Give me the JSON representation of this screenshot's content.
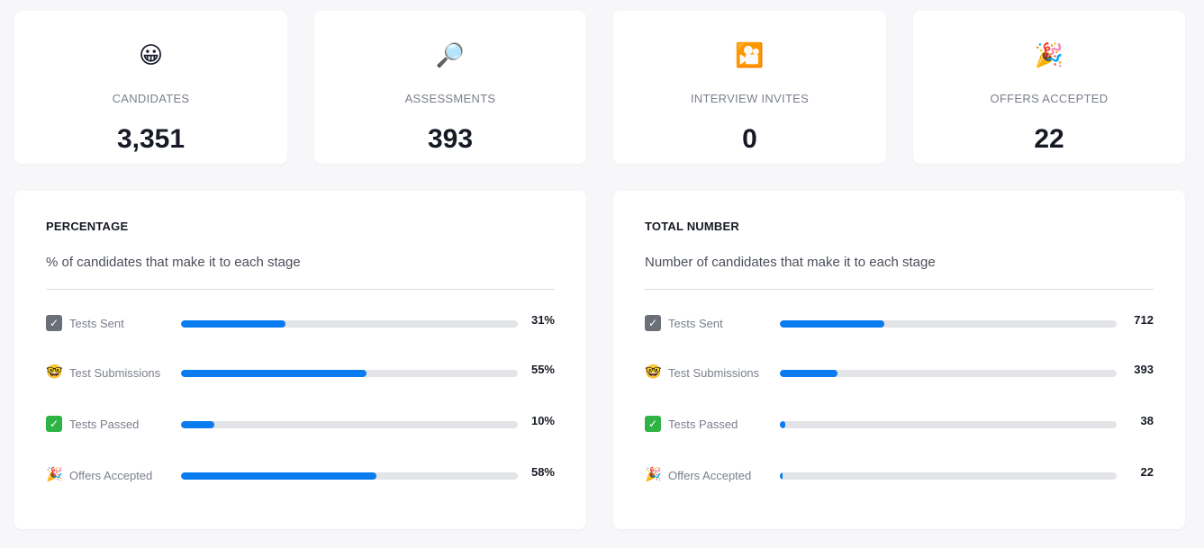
{
  "stats": [
    {
      "icon": "grinning-face-icon",
      "glyph": "😀",
      "label": "CANDIDATES",
      "value": "3,351"
    },
    {
      "icon": "magnifying-glass-icon",
      "glyph": "🔎",
      "label": "ASSESSMENTS",
      "value": "393"
    },
    {
      "icon": "movie-camera-icon",
      "glyph": "🎦",
      "label": "INTERVIEW INVITES",
      "value": "0"
    },
    {
      "icon": "party-popper-icon",
      "glyph": "🎉",
      "label": "OFFERS ACCEPTED",
      "value": "22"
    }
  ],
  "percentage_panel": {
    "title": "PERCENTAGE",
    "subtitle": "% of candidates that make it to each stage",
    "rows": [
      {
        "icon": "check-box-icon",
        "label": "Tests Sent",
        "value": "31%",
        "fraction": 0.31
      },
      {
        "icon": "nerd-face-icon",
        "label": "Test Submissions",
        "value": "55%",
        "fraction": 0.55
      },
      {
        "icon": "check-mark-button-icon",
        "label": "Tests Passed",
        "value": "10%",
        "fraction": 0.1
      },
      {
        "icon": "party-popper-icon",
        "label": "Offers Accepted",
        "value": "58%",
        "fraction": 0.58
      }
    ]
  },
  "total_panel": {
    "title": "TOTAL NUMBER",
    "subtitle": "Number of candidates that make it to each stage",
    "rows": [
      {
        "icon": "check-box-icon",
        "label": "Tests Sent",
        "value": "712",
        "fraction": 0.31
      },
      {
        "icon": "nerd-face-icon",
        "label": "Test Submissions",
        "value": "393",
        "fraction": 0.17
      },
      {
        "icon": "check-mark-button-icon",
        "label": "Tests Passed",
        "value": "38",
        "fraction": 0.016
      },
      {
        "icon": "party-popper-icon",
        "label": "Offers Accepted",
        "value": "22",
        "fraction": 0.009
      }
    ]
  },
  "colors": {
    "bar_fill": "#0a7cf0",
    "bar_track": "#e3e4e8"
  }
}
